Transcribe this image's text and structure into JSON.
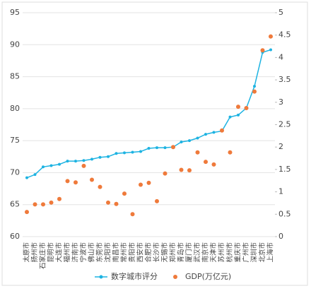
{
  "chart_data": {
    "type": "combo",
    "categories": [
      "太原市",
      "扬州市",
      "石家庄市",
      "昆明市",
      "大连市",
      "福州市",
      "济南市",
      "宁波市",
      "佛山市",
      "东莞市",
      "沈阳市",
      "南昌市",
      "常州市",
      "贵阳市",
      "西安市",
      "合肥市",
      "长沙市",
      "无锡市",
      "郑州市",
      "青岛市",
      "厦门市",
      "武汉市",
      "南京市",
      "天津市",
      "苏州市",
      "杭州市",
      "重庆市",
      "广州市",
      "深圳市",
      "北京市",
      "上海市"
    ],
    "series": [
      {
        "name": "数字城市评分",
        "type": "line",
        "color": "#1db3e2",
        "values": [
          69.2,
          69.7,
          70.9,
          71.1,
          71.3,
          71.8,
          71.8,
          71.9,
          72.1,
          72.4,
          72.5,
          73.0,
          73.1,
          73.2,
          73.3,
          73.8,
          73.9,
          73.9,
          74.0,
          74.8,
          75.0,
          75.4,
          76.0,
          76.3,
          76.5,
          78.7,
          79.0,
          80.1,
          83.5,
          88.8,
          89.2
        ]
      },
      {
        "name": "GDP(万亿元)",
        "type": "scatter",
        "axis": "y2",
        "color": "#ef7a3b",
        "values": [
          0.55,
          0.72,
          0.72,
          0.76,
          0.84,
          1.24,
          1.21,
          1.58,
          1.27,
          1.11,
          0.76,
          0.73,
          0.96,
          0.5,
          1.16,
          1.2,
          0.79,
          1.41,
          2.0,
          1.49,
          1.48,
          1.88,
          1.67,
          1.61,
          2.37,
          1.88,
          2.9,
          2.87,
          3.24,
          4.16,
          4.47
        ]
      }
    ],
    "ylim": [
      60,
      95
    ],
    "yticks": [
      60,
      65,
      70,
      75,
      80,
      85,
      90,
      95
    ],
    "y2lim": [
      0,
      5
    ],
    "y2ticks": [
      0,
      0.5,
      1,
      1.5,
      2,
      2.5,
      3,
      3.5,
      4,
      4.5,
      5
    ],
    "grid": true,
    "legend": "bottom"
  }
}
